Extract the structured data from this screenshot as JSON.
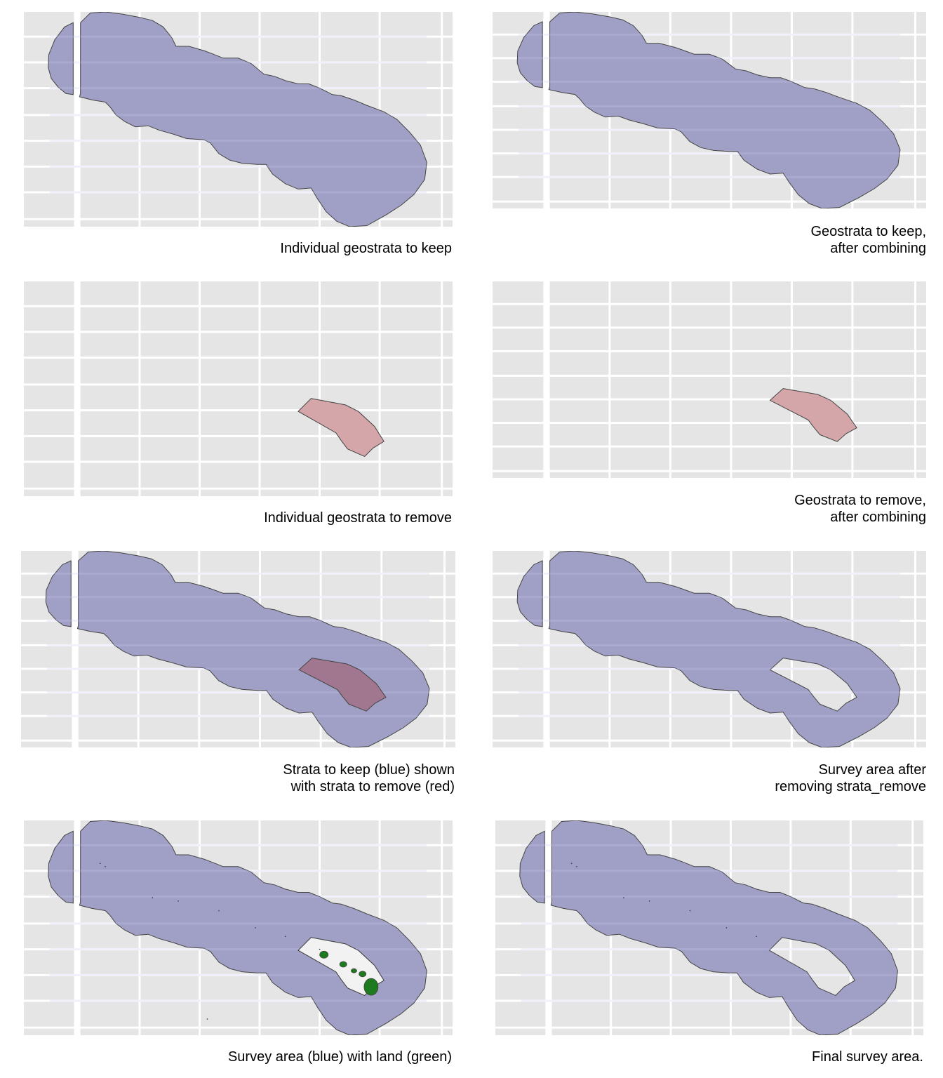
{
  "figure": {
    "colors": {
      "panel_background": "#e5e5e5",
      "gridline": "#ffffff",
      "keep_fill": "#a0a0c6",
      "remove_fill": "#d4a6a9",
      "overlap_fill": "#a0778f",
      "land_fill": "#1e7a1e",
      "outline": "#444444",
      "hole_fill": "#f2f2f2"
    },
    "panels": [
      {
        "id": "p1",
        "caption": "Individual geostrata to keep"
      },
      {
        "id": "p2",
        "caption": "Geostrata to keep,\nafter combining"
      },
      {
        "id": "p3",
        "caption": "Individual geostrata to remove"
      },
      {
        "id": "p4",
        "caption": "Geostrata to remove,\nafter combining"
      },
      {
        "id": "p5",
        "caption": "Strata to keep (blue) shown\nwith strata to remove (red)"
      },
      {
        "id": "p6",
        "caption": "Survey area after\nremoving strata_remove"
      },
      {
        "id": "p7",
        "caption": "Survey area (blue) with land (green)"
      },
      {
        "id": "p8",
        "caption": "Final survey area."
      }
    ]
  },
  "chart_data": [
    {
      "type": "map",
      "title": "Individual geostrata to keep",
      "layers": [
        {
          "name": "strata_keep",
          "fill": "#a0a0c6",
          "geometry": "chain of overlapping circular buffers along the island chain, NW to SE"
        }
      ],
      "grid": true,
      "axis_labels": false
    },
    {
      "type": "map",
      "title": "Geostrata to keep, after combining",
      "layers": [
        {
          "name": "strata_keep_combined",
          "fill": "#a0a0c6",
          "geometry": "single unioned buffer polygon"
        }
      ],
      "grid": true,
      "axis_labels": false
    },
    {
      "type": "map",
      "title": "Individual geostrata to remove",
      "layers": [
        {
          "name": "strata_remove",
          "fill": "#d4a6a9",
          "geometry": "polygon around main Hawaiian islands (SE end)"
        }
      ],
      "grid": true,
      "axis_labels": false
    },
    {
      "type": "map",
      "title": "Geostrata to remove, after combining",
      "layers": [
        {
          "name": "strata_remove_combined",
          "fill": "#d4a6a9"
        }
      ],
      "grid": true,
      "axis_labels": false
    },
    {
      "type": "map",
      "title": "Strata to keep (blue) shown with strata to remove (red)",
      "layers": [
        {
          "name": "strata_keep",
          "fill": "#a0a0c6"
        },
        {
          "name": "strata_remove",
          "fill": "#d4a6a9"
        }
      ],
      "grid": true,
      "axis_labels": false
    },
    {
      "type": "map",
      "title": "Survey area after removing strata_remove",
      "layers": [
        {
          "name": "survey_area",
          "fill": "#a0a0c6",
          "geometry": "keep polygon with remove polygon subtracted (hole)"
        }
      ],
      "grid": true,
      "axis_labels": false
    },
    {
      "type": "map",
      "title": "Survey area (blue) with land (green)",
      "layers": [
        {
          "name": "survey_area",
          "fill": "#a0a0c6"
        },
        {
          "name": "land",
          "fill": "#1e7a1e",
          "geometry": "Hawaiian islands and small NW atolls"
        }
      ],
      "grid": true,
      "axis_labels": false
    },
    {
      "type": "map",
      "title": "Final survey area.",
      "layers": [
        {
          "name": "final_survey_area",
          "fill": "#a0a0c6",
          "geometry": "survey area with land removed"
        }
      ],
      "grid": true,
      "axis_labels": false
    }
  ]
}
